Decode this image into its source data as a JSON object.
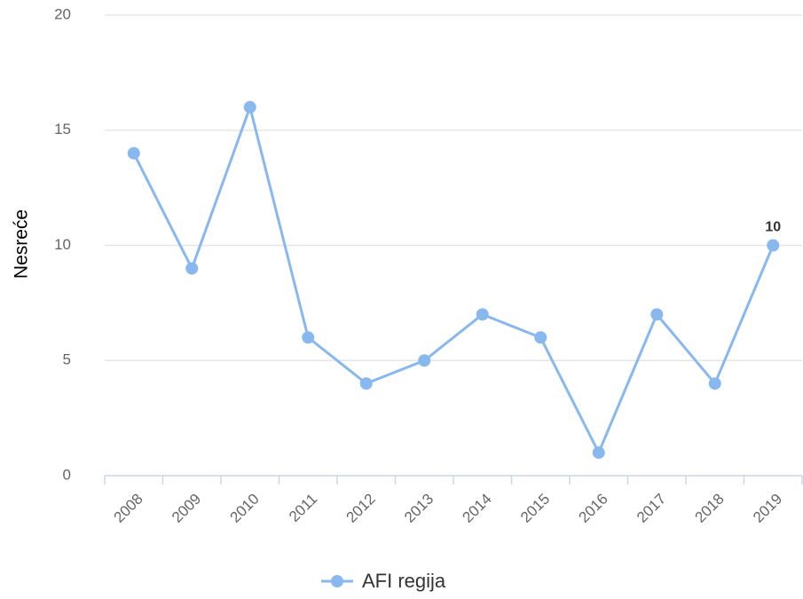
{
  "chart_data": {
    "type": "line",
    "y_label": "Nesreće",
    "categories": [
      "2008",
      "2009",
      "2010",
      "2011",
      "2012",
      "2013",
      "2014",
      "2015",
      "2016",
      "2017",
      "2018",
      "2019"
    ],
    "series": [
      {
        "name": "AFI regija",
        "color": "#88b8ee",
        "values": [
          14,
          9,
          16,
          6,
          4,
          5,
          7,
          6,
          1,
          7,
          4,
          10
        ]
      }
    ],
    "labeled_points": [
      11
    ],
    "ylim": [
      0,
      20
    ],
    "yticks": [
      0,
      5,
      10,
      15,
      20
    ],
    "grid": true
  }
}
